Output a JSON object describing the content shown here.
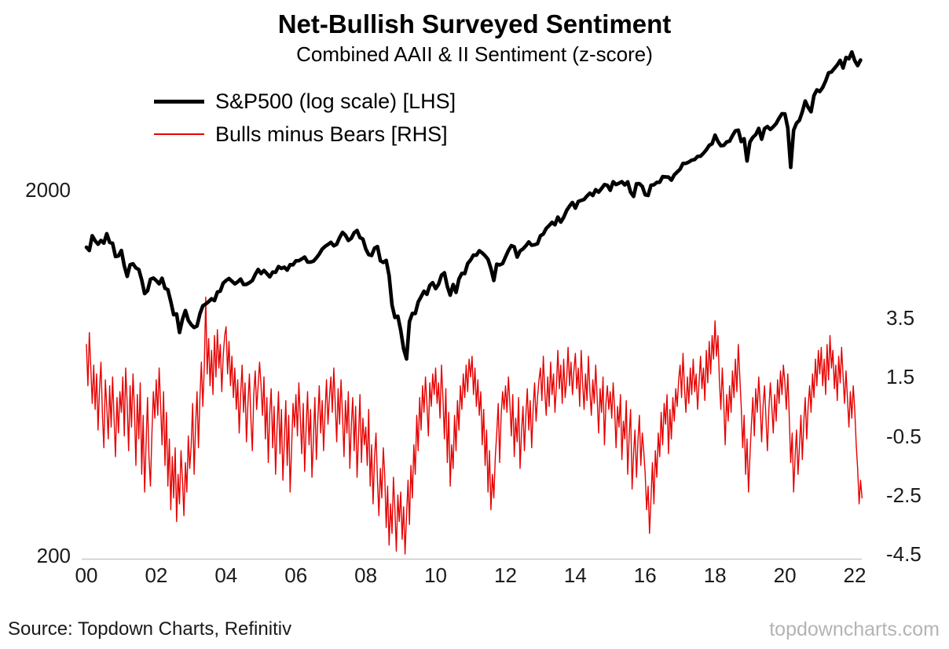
{
  "title": "Net-Bullish Surveyed Sentiment",
  "subtitle": "Combined AAII & II Sentiment (z-score)",
  "source": "Source: Topdown Charts, Refinitiv",
  "watermark": "topdowncharts.com",
  "chart_data": {
    "type": "line",
    "title": "Net-Bullish Surveyed Sentiment",
    "subtitle": "Combined AAII & II Sentiment (z-score)",
    "legend_position": "top-left",
    "x_tick_labels": [
      "00",
      "02",
      "04",
      "06",
      "08",
      "10",
      "12",
      "14",
      "16",
      "18",
      "20",
      "22"
    ],
    "left_axis": {
      "scale": "log",
      "ticks": [
        2000,
        200
      ],
      "tick_labels": [
        "2000",
        "200"
      ]
    },
    "right_axis": {
      "scale": "linear",
      "ticks": [
        3.5,
        1.5,
        -0.5,
        -2.5,
        -4.5
      ],
      "tick_labels": [
        "3.5",
        "1.5",
        "-0.5",
        "-2.5",
        "-4.5"
      ],
      "ylim": [
        -4.5,
        3.5
      ]
    },
    "series": [
      {
        "name": "S&P500 (log scale) [LHS]",
        "axis": "left",
        "color": "#000000",
        "stroke_width": 4.6,
        "start_year": 2000,
        "points_per_year": 12,
        "values": [
          1394,
          1366,
          1499,
          1452,
          1421,
          1455,
          1431,
          1518,
          1437,
          1429,
          1315,
          1320,
          1366,
          1240,
          1160,
          1249,
          1256,
          1224,
          1211,
          1134,
          1041,
          1060,
          1139,
          1148,
          1130,
          1107,
          1147,
          1077,
          1067,
          990,
          911,
          916,
          815,
          886,
          936,
          880,
          856,
          841,
          849,
          917,
          964,
          975,
          990,
          1008,
          996,
          1051,
          1058,
          1112,
          1131,
          1145,
          1126,
          1107,
          1121,
          1141,
          1102,
          1104,
          1115,
          1130,
          1174,
          1212,
          1181,
          1204,
          1181,
          1157,
          1192,
          1191,
          1234,
          1220,
          1229,
          1207,
          1249,
          1248,
          1280,
          1281,
          1295,
          1311,
          1270,
          1270,
          1277,
          1304,
          1336,
          1378,
          1401,
          1418,
          1438,
          1407,
          1421,
          1482,
          1531,
          1503,
          1455,
          1474,
          1527,
          1549,
          1481,
          1468,
          1379,
          1331,
          1323,
          1386,
          1400,
          1280,
          1267,
          1283,
          1166,
          969,
          896,
          903,
          826,
          735,
          690,
          873,
          919,
          919,
          987,
          1021,
          1057,
          1036,
          1096,
          1115,
          1074,
          1104,
          1169,
          1187,
          1089,
          1031,
          1102,
          1049,
          1141,
          1183,
          1181,
          1258,
          1286,
          1327,
          1326,
          1364,
          1345,
          1321,
          1292,
          1219,
          1131,
          1253,
          1247,
          1258,
          1312,
          1366,
          1408,
          1398,
          1310,
          1362,
          1379,
          1407,
          1441,
          1412,
          1416,
          1426,
          1498,
          1515,
          1569,
          1598,
          1631,
          1606,
          1686,
          1633,
          1682,
          1757,
          1806,
          1848,
          1783,
          1859,
          1872,
          1884,
          1924,
          1960,
          1931,
          2003,
          1972,
          2018,
          2068,
          2059,
          1995,
          2105,
          2068,
          2086,
          2107,
          2063,
          2104,
          1972,
          1920,
          2079,
          2080,
          2044,
          1940,
          1932,
          2060,
          2065,
          2097,
          2099,
          2174,
          2171,
          2168,
          2126,
          2199,
          2239,
          2279,
          2364,
          2363,
          2384,
          2412,
          2423,
          2470,
          2472,
          2519,
          2575,
          2648,
          2674,
          2824,
          2714,
          2641,
          2648,
          2705,
          2718,
          2816,
          2902,
          2914,
          2712,
          2760,
          2400,
          2704,
          2785,
          2834,
          2946,
          2752,
          2942,
          2980,
          2926,
          2977,
          3038,
          3141,
          3231,
          3226,
          2954,
          2305,
          2912,
          3044,
          3100,
          3271,
          3500,
          3363,
          3270,
          3622,
          3756,
          3714,
          3811,
          3973,
          4181,
          4204,
          4298,
          4395,
          4523,
          4308,
          4605,
          4567,
          4766,
          4516,
          4374,
          4530
        ]
      },
      {
        "name": "Bulls minus Bears [RHS]",
        "axis": "right",
        "color": "#e60000",
        "stroke_width": 1.4,
        "start_year": 2000,
        "points_per_year": 24,
        "values": [
          2.6,
          1.2,
          3.0,
          1.8,
          0.6,
          1.9,
          0.4,
          1.6,
          -0.3,
          1.1,
          2.0,
          0.2,
          -0.9,
          1.4,
          0.5,
          -0.6,
          1.2,
          -0.2,
          1.5,
          0.1,
          -1.2,
          0.8,
          -0.4,
          1.0,
          0.3,
          1.5,
          -0.5,
          1.8,
          0.6,
          -1.0,
          1.2,
          -0.2,
          1.6,
          0.4,
          -1.5,
          0.9,
          -0.6,
          1.3,
          -1.8,
          0.2,
          -2.4,
          -0.8,
          0.8,
          -1.2,
          -2.2,
          -0.4,
          1.0,
          0.1,
          1.4,
          0.2,
          1.8,
          0.5,
          -0.8,
          1.0,
          -1.5,
          0.3,
          -2.2,
          -0.6,
          -3.0,
          -1.2,
          -2.6,
          -0.9,
          -3.4,
          -1.8,
          -2.8,
          -1.0,
          -2.0,
          -3.2,
          -1.4,
          -2.4,
          -0.5,
          -1.6,
          -0.8,
          0.6,
          -1.8,
          -0.2,
          1.0,
          -0.9,
          0.8,
          2.0,
          0.5,
          1.8,
          4.2,
          1.6,
          2.8,
          1.2,
          2.4,
          0.9,
          2.9,
          1.5,
          3.1,
          1.8,
          2.6,
          1.0,
          2.2,
          2.9,
          3.2,
          1.6,
          2.7,
          1.2,
          2.2,
          0.8,
          1.8,
          0.4,
          1.4,
          -0.4,
          0.9,
          1.9,
          0.3,
          1.3,
          -0.7,
          0.6,
          1.6,
          0.1,
          -1.0,
          0.9,
          1.7,
          0.4,
          1.2,
          2.0,
          1.2,
          0.2,
          1.5,
          -0.6,
          0.8,
          -1.4,
          0.3,
          1.1,
          -0.9,
          0.5,
          -1.8,
          -0.3,
          1.0,
          -1.1,
          0.4,
          -2.0,
          -0.7,
          0.7,
          -1.5,
          0.2,
          -2.4,
          -0.9,
          0.6,
          -0.2,
          0.9,
          -0.5,
          1.3,
          0.1,
          -1.1,
          0.6,
          -1.7,
          -0.2,
          1.0,
          -0.8,
          0.4,
          -1.9,
          -0.6,
          0.8,
          -1.3,
          0.0,
          1.2,
          -0.4,
          0.7,
          -1.0,
          0.3,
          1.4,
          -0.1,
          0.8,
          1.5,
          0.3,
          1.8,
          0.6,
          -0.7,
          1.1,
          -0.1,
          1.4,
          0.2,
          -1.2,
          0.7,
          -0.4,
          1.0,
          -1.6,
          -0.2,
          0.8,
          -1.0,
          0.5,
          -1.9,
          -0.5,
          0.9,
          -1.4,
          0.1,
          -0.8,
          -0.2,
          -1.5,
          0.4,
          -2.2,
          -0.8,
          -2.8,
          -1.2,
          -0.4,
          -2.0,
          -3.2,
          -1.6,
          -2.6,
          -0.9,
          -1.8,
          -3.6,
          -2.2,
          -4.2,
          -2.8,
          -3.8,
          -1.9,
          -3.0,
          -4.4,
          -2.5,
          -3.4,
          -2.4,
          -4.0,
          -2.9,
          -4.5,
          -3.2,
          -2.0,
          -3.5,
          -1.5,
          -2.6,
          -0.8,
          -1.8,
          0.2,
          -1.0,
          0.8,
          -0.3,
          1.2,
          0.3,
          1.5,
          0.6,
          -0.5,
          1.3,
          0.5,
          1.6,
          0.9,
          1.8,
          0.6,
          1.3,
          0.1,
          1.9,
          0.8,
          -0.6,
          1.1,
          -1.4,
          0.3,
          -2.2,
          -0.8,
          -1.6,
          0.2,
          -1.0,
          0.7,
          -0.3,
          1.2,
          0.4,
          1.6,
          0.8,
          1.9,
          1.0,
          2.1,
          1.5,
          2.2,
          0.9,
          1.8,
          0.5,
          1.4,
          0.2,
          1.0,
          -0.8,
          0.4,
          -1.5,
          -0.3,
          -2.4,
          -1.0,
          -3.0,
          -1.8,
          -2.6,
          -1.2,
          -0.4,
          0.6,
          -1.4,
          0.2,
          1.0,
          0.4,
          1.2,
          0.3,
          1.5,
          0.6,
          -0.5,
          0.9,
          -1.2,
          0.1,
          -0.7,
          0.8,
          -1.6,
          -0.4,
          0.5,
          -1.0,
          0.2,
          1.1,
          -0.3,
          0.7,
          -0.9,
          0.4,
          1.3,
          0.0,
          0.8,
          1.4,
          1.8,
          0.7,
          2.2,
          1.0,
          0.2,
          1.5,
          0.5,
          2.0,
          0.9,
          1.6,
          0.3,
          1.2,
          2.4,
          1.1,
          1.9,
          0.6,
          2.1,
          0.8,
          1.4,
          2.5,
          1.2,
          2.0,
          0.9,
          1.7,
          2.3,
          1.1,
          1.8,
          0.5,
          2.4,
          1.3,
          0.4,
          1.6,
          0.7,
          2.2,
          1.0,
          0.2,
          1.4,
          0.6,
          1.9,
          0.8,
          -0.4,
          1.1,
          0.3,
          1.5,
          -0.8,
          0.6,
          1.2,
          0.4,
          1.0,
          0.1,
          1.3,
          0.4,
          -0.9,
          0.5,
          -0.2,
          0.9,
          -1.3,
          0.0,
          -0.6,
          0.7,
          -1.8,
          -0.5,
          0.4,
          -2.3,
          -1.1,
          -0.3,
          -1.9,
          -0.7,
          0.2,
          -1.5,
          -0.4,
          -1.0,
          -1.8,
          -3.0,
          -2.2,
          -3.8,
          -2.6,
          -1.4,
          -2.8,
          -1.0,
          -1.9,
          -0.4,
          -1.2,
          0.3,
          -0.8,
          0.6,
          -0.1,
          0.9,
          -1.1,
          0.4,
          -0.6,
          0.8,
          0.0,
          1.1,
          0.5,
          1.4,
          1.9,
          0.8,
          2.3,
          1.1,
          0.3,
          1.5,
          0.6,
          1.8,
          0.9,
          2.1,
          1.0,
          1.6,
          0.4,
          1.3,
          2.2,
          1.1,
          1.8,
          0.7,
          2.4,
          1.3,
          2.7,
          1.6,
          2.9,
          2.1,
          3.4,
          2.2,
          2.9,
          1.4,
          0.4,
          1.8,
          0.6,
          -0.8,
          0.9,
          0.0,
          1.2,
          0.3,
          1.7,
          0.8,
          2.1,
          1.0,
          2.6,
          1.5,
          0.5,
          -0.9,
          0.2,
          -1.8,
          -0.6,
          -2.4,
          -1.2,
          -0.1,
          0.8,
          -0.5,
          1.1,
          0.3,
          1.5,
          0.6,
          -0.7,
          0.5,
          1.2,
          0.1,
          -1.0,
          0.4,
          1.3,
          0.5,
          -0.4,
          0.9,
          0.0,
          1.4,
          0.6,
          1.7,
          0.9,
          1.9,
          1.3,
          0.4,
          1.6,
          0.2,
          -1.4,
          -0.4,
          -2.4,
          -1.2,
          -0.3,
          -1.8,
          -0.9,
          0.2,
          -1.3,
          0.0,
          0.8,
          -0.6,
          0.5,
          1.2,
          0.3,
          1.6,
          0.8,
          2.1,
          1.2,
          2.4,
          1.6,
          2.5,
          1.2,
          2.1,
          0.9,
          2.6,
          1.4,
          2.9,
          1.8,
          2.4,
          1.1,
          1.9,
          0.7,
          2.2,
          1.3,
          2.5,
          1.5,
          0.6,
          1.7,
          0.8,
          -0.2,
          1.0,
          0.1,
          1.2,
          0.4,
          -0.8,
          -1.6,
          -2.8,
          -2.0,
          -2.6
        ]
      }
    ]
  }
}
